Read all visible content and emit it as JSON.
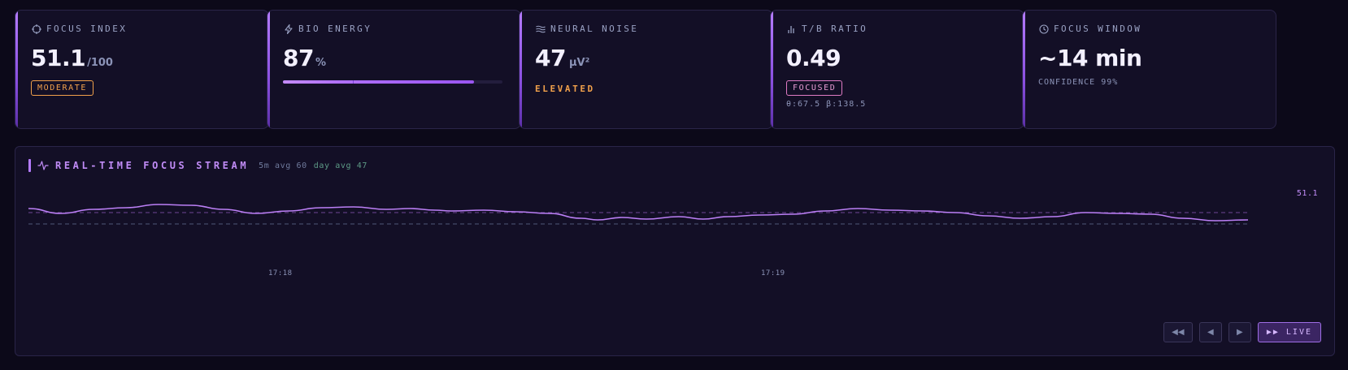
{
  "cards": [
    {
      "label": "FOCUS INDEX",
      "icon": "crosshair-icon",
      "value": "51.1",
      "unit": "/100",
      "badge": "MODERATE"
    },
    {
      "label": "BIO ENERGY",
      "icon": "lightning-icon",
      "value": "87",
      "unit": "%",
      "progress": 0.87,
      "progress_track_marker": 0.32
    },
    {
      "label": "NEURAL NOISE",
      "icon": "waves-icon",
      "value": "47",
      "unit": "µV²",
      "status": "ELEVATED"
    },
    {
      "label": "T/B RATIO",
      "icon": "bars-icon",
      "value": "0.49",
      "badge": "FOCUSED",
      "detail": "θ:67.5 β:138.5"
    },
    {
      "label": "FOCUS WINDOW",
      "icon": "clock-icon",
      "value": "~14 min",
      "detail": "CONFIDENCE 99%"
    }
  ],
  "stream": {
    "title": "REAL-TIME FOCUS STREAM",
    "stat_5m": "5m avg 60",
    "stat_day": "day avg 47",
    "current_value": "51.1",
    "time_labels": [
      "17:18",
      "17:19"
    ],
    "controls": {
      "rewind_fast": "◀◀",
      "step_back": "◀",
      "step_forward": "▶",
      "live": "▶▶ LIVE"
    }
  },
  "colors": {
    "accent": "#b57cff",
    "warning": "#f0a04b",
    "pink": "#e07bc4",
    "background": "#0c0919",
    "card": "#130f26"
  }
}
